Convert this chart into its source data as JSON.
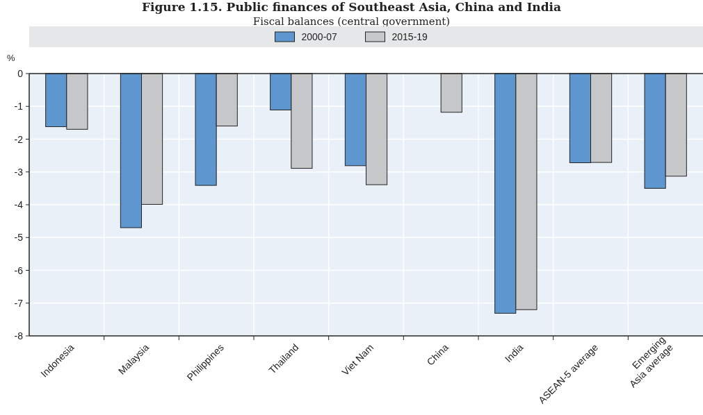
{
  "chart_data": {
    "type": "bar",
    "title": "Figure 1.15. Public finances of Southeast Asia, China and India",
    "subtitle": "Fiscal balances (central government)",
    "ylabel": "%",
    "categories": [
      "Indonesia",
      "Malaysia",
      "Philippines",
      "Thailand",
      "Viet Nam",
      "China",
      "India",
      "ASEAN-5 average",
      "Emerging Asia average"
    ],
    "series": [
      {
        "name": "2000-07",
        "color": "#5e97d0",
        "values": [
          -1.62,
          -4.7,
          -3.41,
          -1.11,
          -2.81,
          null,
          -7.31,
          -2.72,
          -3.5
        ]
      },
      {
        "name": "2015-19",
        "color": "#c6c7c9",
        "values": [
          -1.7,
          -3.99,
          -1.6,
          -2.89,
          -3.39,
          -1.18,
          -7.2,
          -2.71,
          -3.13
        ]
      }
    ],
    "ylim": [
      -8,
      0
    ],
    "yticks": [
      0,
      -1,
      -2,
      -3,
      -4,
      -5,
      -6,
      -7,
      -8
    ],
    "grid": true,
    "legend": "top"
  }
}
